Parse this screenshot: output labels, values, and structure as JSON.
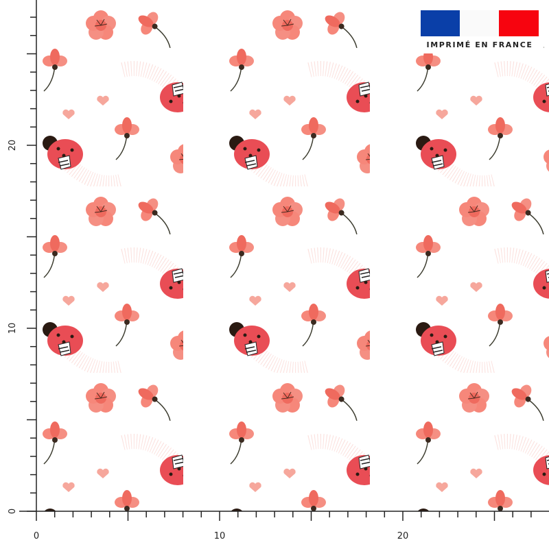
{
  "badge": {
    "text": "IMPRIMÉ EN FRANCE"
  },
  "ruler": {
    "x_labels": [
      "0",
      "10",
      "20"
    ],
    "y_labels": [
      "0",
      "10",
      "20"
    ]
  }
}
